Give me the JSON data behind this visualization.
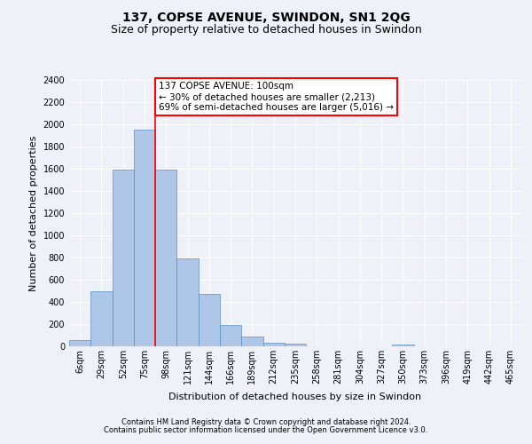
{
  "title": "137, COPSE AVENUE, SWINDON, SN1 2QG",
  "subtitle": "Size of property relative to detached houses in Swindon",
  "xlabel": "Distribution of detached houses by size in Swindon",
  "ylabel": "Number of detached properties",
  "categories": [
    "6sqm",
    "29sqm",
    "52sqm",
    "75sqm",
    "98sqm",
    "121sqm",
    "144sqm",
    "166sqm",
    "189sqm",
    "212sqm",
    "235sqm",
    "258sqm",
    "281sqm",
    "304sqm",
    "327sqm",
    "350sqm",
    "373sqm",
    "396sqm",
    "419sqm",
    "442sqm",
    "465sqm"
  ],
  "values": [
    55,
    500,
    1590,
    1950,
    1590,
    790,
    470,
    195,
    90,
    35,
    25,
    0,
    0,
    0,
    0,
    20,
    0,
    0,
    0,
    0,
    0
  ],
  "bar_color": "#aec6e8",
  "bar_edge_color": "#5a8fc2",
  "annotation_title": "137 COPSE AVENUE: 100sqm",
  "annotation_line1": "← 30% of detached houses are smaller (2,213)",
  "annotation_line2": "69% of semi-detached houses are larger (5,016) →",
  "vline_color": "red",
  "vline_x": 3.5,
  "annotation_box_color": "#ffffff",
  "annotation_box_edge": "red",
  "ylim": [
    0,
    2400
  ],
  "yticks": [
    0,
    200,
    400,
    600,
    800,
    1000,
    1200,
    1400,
    1600,
    1800,
    2000,
    2200,
    2400
  ],
  "footer1": "Contains HM Land Registry data © Crown copyright and database right 2024.",
  "footer2": "Contains public sector information licensed under the Open Government Licence v3.0.",
  "bg_color": "#eef2f8",
  "title_fontsize": 10,
  "subtitle_fontsize": 9,
  "tick_fontsize": 7,
  "ylabel_fontsize": 8,
  "xlabel_fontsize": 8,
  "footer_fontsize": 6,
  "annot_fontsize": 7.5
}
